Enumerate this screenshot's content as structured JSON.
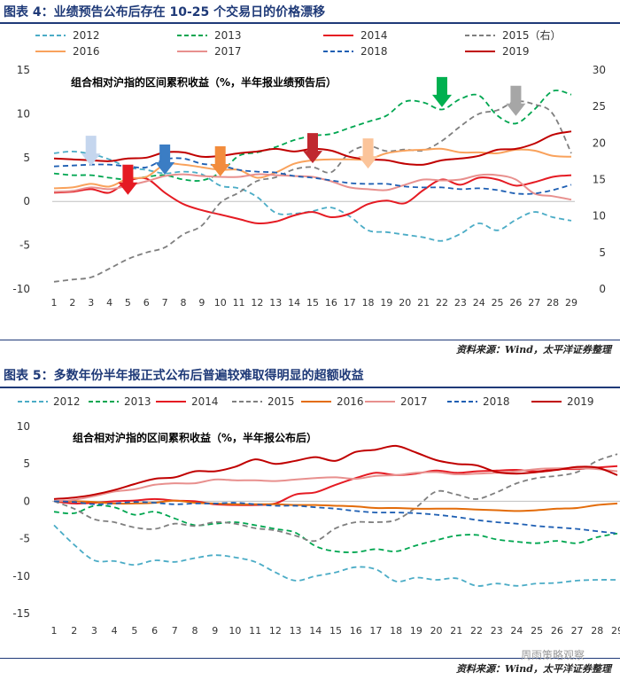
{
  "chart_data": [
    {
      "type": "line",
      "title": "图表 4：业绩预告公布后存在 10-25 个交易日的价格漂移",
      "annotation": "组合相对沪指的区间累积收益（%，半年报业绩预告后）",
      "source": "资料来源：Wind，太平洋证券整理",
      "x": [
        1,
        2,
        3,
        4,
        5,
        6,
        7,
        8,
        9,
        10,
        11,
        12,
        13,
        14,
        15,
        16,
        17,
        18,
        19,
        20,
        21,
        22,
        23,
        24,
        25,
        26,
        27,
        28,
        29
      ],
      "ylim": [
        -10,
        15
      ],
      "y_ticks": [
        "-10",
        "-5",
        "0",
        "5",
        "10",
        "15"
      ],
      "y2lim": [
        0,
        30
      ],
      "y2_ticks": [
        "0",
        "5",
        "10",
        "15",
        "20",
        "25",
        "30"
      ],
      "series": [
        {
          "name": "2012",
          "color": "#4bacc6",
          "dash": "6,4",
          "axis": "left",
          "values": [
            5.5,
            5.7,
            5.4,
            4.8,
            3.9,
            3.6,
            3.2,
            3.4,
            3.1,
            1.8,
            1.5,
            0.5,
            -1.3,
            -1.4,
            -1.1,
            -0.7,
            -1.7,
            -3.3,
            -3.5,
            -3.8,
            -4.1,
            -4.5,
            -3.7,
            -2.5,
            -3.3,
            -2.1,
            -1.2,
            -1.8,
            -2.2
          ]
        },
        {
          "name": "2013",
          "color": "#00a650",
          "dash": "6,4",
          "axis": "left",
          "values": [
            3.2,
            3.0,
            3.0,
            2.7,
            2.5,
            2.8,
            3.0,
            2.5,
            2.4,
            3.3,
            5.2,
            5.6,
            6.2,
            7.0,
            7.5,
            7.7,
            8.4,
            9.1,
            9.8,
            11.4,
            11.3,
            10.5,
            11.7,
            12.1,
            9.8,
            8.9,
            10.5,
            12.6,
            12.2
          ]
        },
        {
          "name": "2014",
          "color": "#e51b23",
          "dash": "",
          "axis": "left",
          "values": [
            1.0,
            1.1,
            1.4,
            1.0,
            2.3,
            2.6,
            1.0,
            -0.3,
            -1.0,
            -1.5,
            -2.0,
            -2.5,
            -2.3,
            -1.6,
            -1.2,
            -1.8,
            -1.4,
            -0.3,
            0.1,
            -0.2,
            1.3,
            2.5,
            1.9,
            2.7,
            2.5,
            1.8,
            2.2,
            2.8,
            3.0
          ]
        },
        {
          "name": "2015（右）",
          "color": "#7f7f7f",
          "dash": "6,4",
          "axis": "right",
          "values": [
            1.0,
            1.3,
            1.6,
            2.8,
            4.1,
            5.0,
            5.7,
            7.5,
            8.7,
            11.8,
            13.2,
            14.8,
            15.3,
            16.4,
            16.7,
            16.0,
            18.7,
            19.6,
            18.9,
            19.1,
            19.0,
            20.3,
            22.3,
            24.0,
            24.5,
            25.7,
            25.3,
            24.0,
            18.6
          ]
        },
        {
          "name": "2016",
          "color": "#f9a25c",
          "dash": "",
          "axis": "left",
          "values": [
            1.5,
            1.6,
            2.0,
            1.7,
            2.6,
            2.8,
            4.2,
            4.2,
            3.9,
            3.6,
            3.6,
            2.7,
            3.3,
            4.3,
            4.7,
            4.8,
            4.8,
            4.8,
            5.5,
            5.8,
            5.9,
            6.0,
            5.6,
            5.6,
            5.5,
            5.9,
            5.8,
            5.2,
            5.1
          ]
        },
        {
          "name": "2017",
          "color": "#e8908e",
          "dash": "",
          "axis": "left",
          "values": [
            1.1,
            1.2,
            1.6,
            1.4,
            1.8,
            2.3,
            2.9,
            3.1,
            2.9,
            2.8,
            2.8,
            3.1,
            3.0,
            2.9,
            2.8,
            2.3,
            1.6,
            1.4,
            1.3,
            1.9,
            2.5,
            2.4,
            2.5,
            3.0,
            3.0,
            2.5,
            0.9,
            0.6,
            0.2
          ]
        },
        {
          "name": "2018",
          "color": "#1e5fb3",
          "dash": "6,4",
          "axis": "left",
          "values": [
            4.0,
            4.1,
            4.2,
            4.2,
            4.0,
            3.9,
            4.8,
            4.9,
            4.3,
            4.1,
            3.6,
            3.4,
            3.3,
            2.9,
            2.7,
            2.4,
            2.1,
            2.0,
            2.0,
            1.7,
            1.6,
            1.6,
            1.4,
            1.5,
            1.3,
            0.9,
            0.9,
            1.3,
            1.9
          ]
        },
        {
          "name": "2019",
          "color": "#c00000",
          "dash": "",
          "axis": "left",
          "values": [
            4.9,
            4.8,
            4.7,
            4.6,
            4.9,
            5.0,
            5.6,
            5.6,
            5.1,
            5.2,
            5.5,
            5.7,
            6.0,
            5.7,
            6.0,
            5.8,
            5.1,
            4.8,
            4.7,
            4.3,
            4.2,
            4.7,
            4.9,
            5.2,
            5.9,
            6.0,
            6.6,
            7.6,
            8.0
          ]
        }
      ],
      "arrows": [
        {
          "x": 3,
          "y": 7.5,
          "color": "#c5d6ee"
        },
        {
          "x": 5,
          "y": 4.2,
          "color": "#e51b23"
        },
        {
          "x": 7,
          "y": 6.5,
          "color": "#3b7dc4"
        },
        {
          "x": 10,
          "y": 6.3,
          "color": "#f28c3c"
        },
        {
          "x": 15,
          "y": 7.8,
          "color": "#c0292f"
        },
        {
          "x": 18,
          "y": 7.2,
          "color": "#fbc49a"
        },
        {
          "x": 22,
          "y": 14.2,
          "color": "#00b050"
        },
        {
          "x": 26,
          "y": 13.2,
          "color": "#a6a6a6"
        }
      ]
    },
    {
      "type": "line",
      "title": "图表 5：多数年份半年报正式公布后普遍较难取得明显的超额收益",
      "annotation": "组合相对沪指的区间累积收益（%，半年报公布后）",
      "source": "资料来源：Wind，太平洋证券整理",
      "x": [
        1,
        2,
        3,
        4,
        5,
        6,
        7,
        8,
        9,
        10,
        11,
        12,
        13,
        14,
        15,
        16,
        17,
        18,
        19,
        20,
        21,
        22,
        23,
        24,
        25,
        26,
        27,
        28,
        29
      ],
      "ylim": [
        -15,
        10
      ],
      "y_ticks": [
        "-15",
        "-10",
        "-5",
        "0",
        "5",
        "10"
      ],
      "series": [
        {
          "name": "2012",
          "color": "#4bacc6",
          "dash": "6,4",
          "values": [
            -3.2,
            -5.8,
            -7.9,
            -8.0,
            -8.5,
            -7.9,
            -8.1,
            -7.6,
            -7.2,
            -7.5,
            -8.1,
            -9.5,
            -10.6,
            -10.0,
            -9.5,
            -8.8,
            -9.1,
            -10.7,
            -10.2,
            -10.5,
            -10.3,
            -11.3,
            -11.0,
            -11.3,
            -11.0,
            -10.9,
            -10.6,
            -10.5,
            -10.5
          ]
        },
        {
          "name": "2013",
          "color": "#00a650",
          "dash": "6,4",
          "values": [
            -1.4,
            -1.6,
            -0.6,
            -0.8,
            -1.8,
            -1.4,
            -2.3,
            -3.2,
            -3.0,
            -2.8,
            -3.2,
            -3.7,
            -4.2,
            -6.0,
            -6.7,
            -6.8,
            -6.4,
            -6.7,
            -5.9,
            -5.2,
            -4.6,
            -4.5,
            -5.1,
            -5.4,
            -5.6,
            -5.3,
            -5.6,
            -4.8,
            -4.3
          ]
        },
        {
          "name": "2014",
          "color": "#e51b23",
          "dash": "",
          "values": [
            0.0,
            -0.3,
            -0.2,
            0.0,
            0.1,
            0.3,
            0.1,
            0.0,
            -0.4,
            -0.5,
            -0.5,
            -0.3,
            0.9,
            1.2,
            2.2,
            3.1,
            3.8,
            3.5,
            3.7,
            4.1,
            3.8,
            4.0,
            4.1,
            4.2,
            4.0,
            4.3,
            4.3,
            4.5,
            4.7
          ]
        },
        {
          "name": "2015",
          "color": "#7f7f7f",
          "dash": "6,4",
          "values": [
            0.0,
            -1.0,
            -2.4,
            -2.8,
            -3.5,
            -3.7,
            -3.0,
            -3.3,
            -2.8,
            -3.0,
            -3.6,
            -3.9,
            -4.6,
            -5.3,
            -3.6,
            -2.8,
            -2.8,
            -2.5,
            -0.8,
            1.3,
            0.9,
            0.3,
            1.2,
            2.4,
            3.1,
            3.4,
            3.9,
            5.4,
            6.3
          ]
        },
        {
          "name": "2016",
          "color": "#e36c0a",
          "dash": "",
          "values": [
            0.0,
            0.0,
            -0.1,
            -0.3,
            -0.3,
            -0.2,
            0.1,
            -0.2,
            -0.3,
            -0.4,
            -0.4,
            -0.4,
            -0.5,
            -0.5,
            -0.6,
            -0.7,
            -0.9,
            -0.9,
            -1.0,
            -1.0,
            -1.0,
            -1.1,
            -1.2,
            -1.3,
            -1.2,
            -1.0,
            -0.9,
            -0.5,
            -0.3
          ]
        },
        {
          "name": "2017",
          "color": "#e8908e",
          "dash": "",
          "values": [
            0.0,
            0.2,
            0.7,
            1.3,
            1.6,
            2.2,
            2.4,
            2.4,
            2.9,
            2.8,
            2.8,
            2.7,
            2.9,
            3.1,
            3.2,
            3.0,
            3.4,
            3.5,
            3.8,
            3.9,
            3.6,
            3.7,
            3.8,
            4.0,
            4.3,
            4.4,
            4.4,
            4.3,
            4.0
          ]
        },
        {
          "name": "2018",
          "color": "#1e5fb3",
          "dash": "6,4",
          "values": [
            0.0,
            -0.1,
            -0.4,
            -0.3,
            -0.1,
            -0.2,
            -0.4,
            -0.3,
            -0.3,
            -0.2,
            -0.4,
            -0.6,
            -0.6,
            -0.8,
            -1.0,
            -1.3,
            -1.5,
            -1.5,
            -1.6,
            -1.8,
            -2.1,
            -2.5,
            -2.8,
            -3.0,
            -3.3,
            -3.5,
            -3.7,
            -4.0,
            -4.3
          ]
        },
        {
          "name": "2019",
          "color": "#c00000",
          "dash": "",
          "values": [
            0.3,
            0.5,
            0.9,
            1.5,
            2.3,
            3.0,
            3.2,
            4.0,
            4.0,
            4.6,
            5.6,
            5.0,
            5.4,
            5.9,
            5.4,
            6.6,
            6.9,
            7.4,
            6.5,
            5.5,
            5.0,
            4.8,
            3.9,
            3.7,
            3.9,
            4.2,
            4.6,
            4.5,
            3.5
          ]
        }
      ]
    }
  ],
  "watermark": "周雨策略观察"
}
